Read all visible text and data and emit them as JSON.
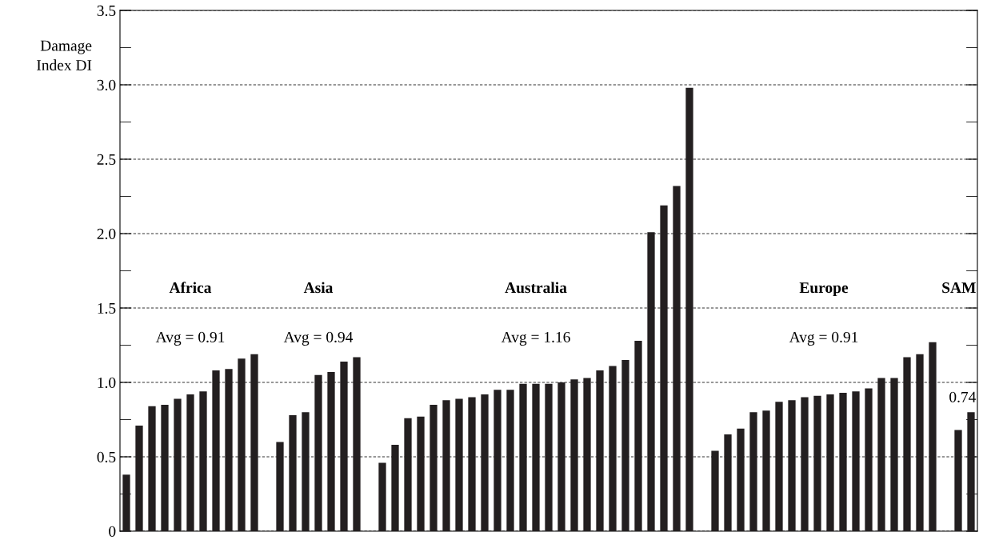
{
  "chart_data": {
    "type": "bar",
    "ylabel": "Damage\nIndex DI",
    "categories": [
      null,
      null,
      null,
      null,
      null,
      null,
      null,
      null,
      null,
      null,
      null,
      null,
      null,
      null,
      null,
      null,
      null,
      null,
      null,
      null,
      null,
      null,
      null,
      null,
      null,
      null,
      null,
      null,
      null,
      null,
      null,
      null,
      null,
      null,
      null,
      null,
      null,
      null,
      null,
      null,
      null,
      null,
      null,
      null,
      null,
      null,
      null,
      null,
      null,
      null,
      null,
      null,
      null,
      null,
      null,
      null,
      null,
      null,
      null,
      null,
      null,
      null,
      null,
      null,
      null,
      null,
      null
    ],
    "values": [
      0.38,
      0.71,
      0.84,
      0.85,
      0.89,
      0.92,
      0.94,
      1.08,
      1.09,
      1.16,
      1.19,
      null,
      0.6,
      0.78,
      0.8,
      1.05,
      1.07,
      1.14,
      1.17,
      null,
      0.46,
      0.58,
      0.76,
      0.77,
      0.85,
      0.88,
      0.89,
      0.9,
      0.92,
      0.95,
      0.95,
      0.99,
      0.99,
      0.99,
      1.0,
      1.02,
      1.03,
      1.08,
      1.11,
      1.15,
      1.28,
      2.01,
      2.19,
      2.32,
      2.98,
      null,
      0.54,
      0.65,
      0.69,
      0.8,
      0.81,
      0.87,
      0.88,
      0.9,
      0.91,
      0.92,
      0.93,
      0.94,
      0.96,
      1.03,
      1.03,
      1.17,
      1.19,
      1.27,
      null,
      0.68,
      0.8
    ],
    "color": "#231f20",
    "ylim": [
      0,
      3.5
    ],
    "yticks": [
      0,
      {
        "value": 0.5,
        "label": "0.5"
      },
      {
        "value": 1,
        "label": "1.0"
      },
      {
        "value": 1.5,
        "label": "1.5"
      },
      {
        "value": 2,
        "label": "2.0"
      },
      {
        "value": 2.5,
        "label": "2.5"
      },
      {
        "value": 3,
        "label": "3.0"
      },
      {
        "value": 3.5,
        "label": "3.5"
      }
    ],
    "grid": "y",
    "line_style": "dashed",
    "tick_labels": "y",
    "annotations": [
      "Africa",
      "Avg = 0.91",
      "Asia",
      "Avg = 0.94",
      "Australia",
      "Avg = 1.16",
      "Europe",
      "Avg = 0.91",
      "SAM",
      "0.74"
    ]
  }
}
